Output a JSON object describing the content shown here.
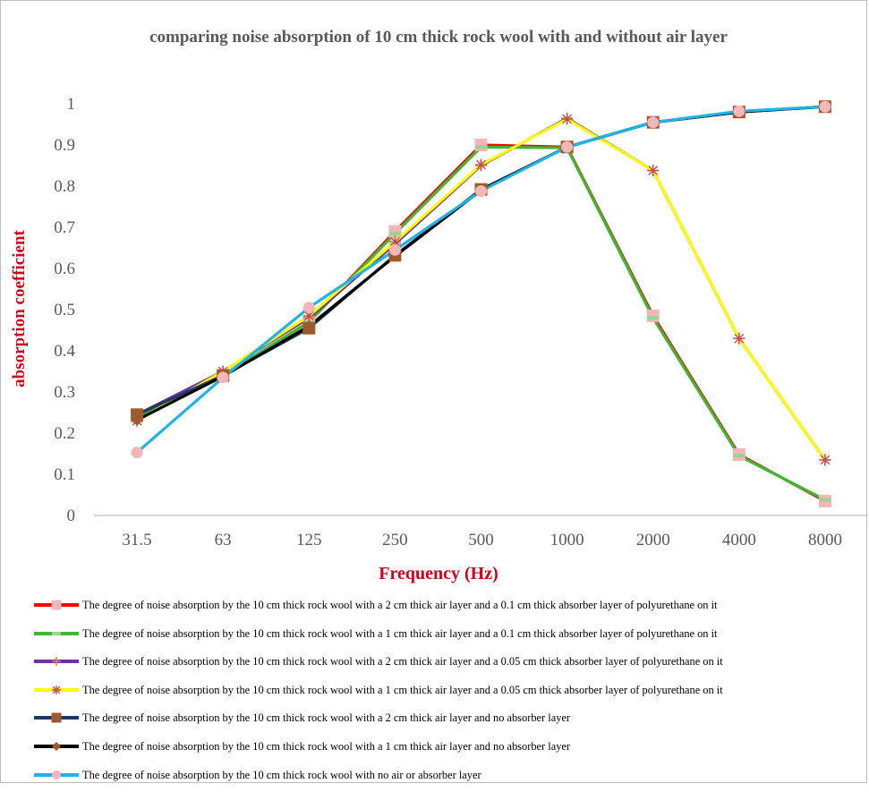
{
  "chart_data": {
    "type": "line",
    "title": "comparing noise absorption of 10 cm thick rock wool with and without air layer",
    "xlabel": "Frequency (Hz)",
    "ylabel": "absorption coefficient",
    "categories": [
      "31.5",
      "63",
      "125",
      "250",
      "500",
      "1000",
      "2000",
      "4000",
      "8000"
    ],
    "ylim": [
      0,
      1
    ],
    "yticks": [
      "0",
      "0.1",
      "0.2",
      "0.3",
      "0.4",
      "0.5",
      "0.6",
      "0.7",
      "0.8",
      "0.9",
      "1"
    ],
    "grid": false,
    "legend_position": "bottom",
    "series": [
      {
        "name": "The degree of noise absorption by the 10 cm thick rock wool with a 2 cm thick air layer and a 0.1 cm thick absorber layer of polyurethane on it",
        "color": "#ff0000",
        "marker": "square",
        "marker_color": "#f4b6b6",
        "values": [
          0.24,
          0.34,
          0.47,
          0.69,
          0.9,
          0.895,
          0.485,
          0.148,
          0.035
        ]
      },
      {
        "name": "The degree of noise absorption by the 10 cm thick rock wool with a 1 cm thick air layer and a 0.1 cm thick absorber layer of polyurethane on it",
        "color": "#3cb832",
        "marker": "dash",
        "marker_color": "#9ad48f",
        "values": [
          0.24,
          0.34,
          0.47,
          0.685,
          0.895,
          0.893,
          0.48,
          0.145,
          0.038
        ]
      },
      {
        "name": "The degree of noise absorption by the 10 cm thick rock wool with a 2 cm thick air layer and a 0.05 cm thick absorber layer of polyurethane on it",
        "color": "#7030a0",
        "marker": "plus",
        "marker_color": "#d98a5a",
        "values": [
          0.245,
          0.35,
          0.48,
          0.66,
          0.85,
          0.965,
          0.838,
          0.43,
          0.135
        ]
      },
      {
        "name": "The degree of noise absorption by the 10 cm thick rock wool with a 1 cm thick air layer and a 0.05 cm thick absorber layer of polyurethane on it",
        "color": "#ffff00",
        "marker": "star",
        "marker_color": "#c0504d",
        "values": [
          0.23,
          0.35,
          0.485,
          0.665,
          0.852,
          0.963,
          0.838,
          0.43,
          0.135
        ]
      },
      {
        "name": "The degree of noise absorption by the 10 cm thick rock wool with a 2 cm thick air layer and no absorber layer",
        "color": "#1f3864",
        "marker": "square",
        "marker_color": "#9c5b2e",
        "values": [
          0.245,
          0.34,
          0.455,
          0.632,
          0.792,
          0.895,
          0.955,
          0.98,
          0.993
        ]
      },
      {
        "name": "The degree of noise absorption by the 10 cm thick rock wool with a 1 cm thick air layer and no absorber layer",
        "color": "#000000",
        "marker": "diamond",
        "marker_color": "#9c5b2e",
        "values": [
          0.232,
          0.338,
          0.46,
          0.63,
          0.79,
          0.895,
          0.955,
          0.98,
          0.993
        ]
      },
      {
        "name": "The degree of noise absorption by the 10 cm thick rock wool with no air or absorber layer",
        "color": "#1fb4e8",
        "marker": "circle",
        "marker_color": "#f4b6b6",
        "values": [
          0.153,
          0.335,
          0.505,
          0.645,
          0.788,
          0.895,
          0.955,
          0.982,
          0.993
        ]
      }
    ]
  }
}
